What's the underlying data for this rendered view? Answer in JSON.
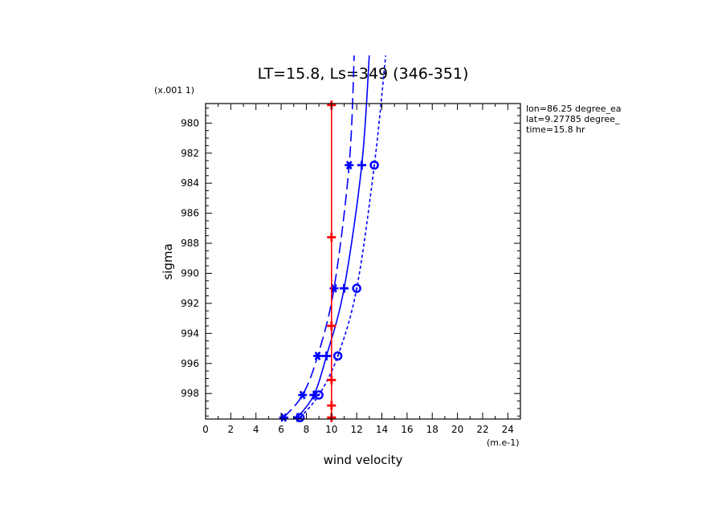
{
  "chart_data": {
    "type": "line",
    "title": "LT=15.8, Ls=349 (346-351)",
    "xlabel": "wind velocity",
    "ylabel": "sigma",
    "x_unit_label": "(m.e-1)",
    "y_scale_label": "(x.001 1)",
    "xlim": [
      0,
      25
    ],
    "ylim": [
      978.7,
      999.7
    ],
    "y_inverted": true,
    "x_ticks": [
      0,
      2,
      4,
      6,
      8,
      10,
      12,
      14,
      16,
      18,
      20,
      22,
      24
    ],
    "y_ticks": [
      980,
      982,
      984,
      986,
      988,
      990,
      992,
      994,
      996,
      998
    ],
    "info_lines": [
      "lon=86.25 degree_ea",
      "lat=9.27785 degree_",
      "time=15.8 hr"
    ],
    "series": [
      {
        "color": "#0000ff",
        "dash": "solid",
        "marker": "plus",
        "points": [
          {
            "x": 7.3,
            "y": 999.6
          },
          {
            "x": 8.6,
            "y": 998.1
          },
          {
            "x": 9.6,
            "y": 995.5
          },
          {
            "x": 11.0,
            "y": 991.0
          },
          {
            "x": 12.4,
            "y": 982.8
          },
          {
            "x": 13.0,
            "y": 975.5
          }
        ]
      },
      {
        "color": "#0000ff",
        "dash": "longdash",
        "marker": "star",
        "points": [
          {
            "x": 6.2,
            "y": 999.6
          },
          {
            "x": 7.7,
            "y": 998.1
          },
          {
            "x": 8.9,
            "y": 995.5
          },
          {
            "x": 10.2,
            "y": 991.0
          },
          {
            "x": 11.4,
            "y": 982.8
          },
          {
            "x": 11.8,
            "y": 975.5
          }
        ]
      },
      {
        "color": "#0000ff",
        "dash": "shortdash",
        "marker": "circle",
        "points": [
          {
            "x": 7.5,
            "y": 999.6
          },
          {
            "x": 9.0,
            "y": 998.1
          },
          {
            "x": 10.5,
            "y": 995.5
          },
          {
            "x": 12.0,
            "y": 991.0
          },
          {
            "x": 13.4,
            "y": 982.8
          },
          {
            "x": 14.3,
            "y": 975.5
          }
        ]
      },
      {
        "color": "#ff0000",
        "dash": "solid",
        "marker": "plus",
        "points": [
          {
            "x": 10.0,
            "y": 999.6
          },
          {
            "x": 10.0,
            "y": 998.8
          },
          {
            "x": 10.0,
            "y": 997.1
          },
          {
            "x": 10.0,
            "y": 993.5
          },
          {
            "x": 10.0,
            "y": 987.6
          },
          {
            "x": 10.0,
            "y": 978.8
          }
        ]
      }
    ]
  }
}
